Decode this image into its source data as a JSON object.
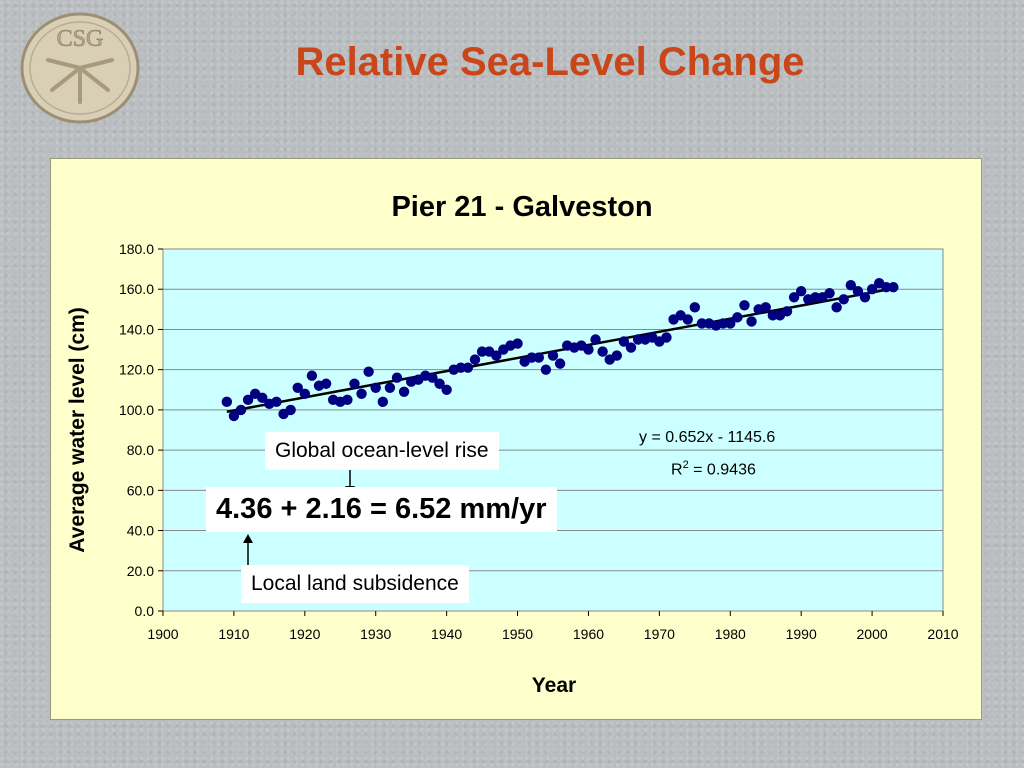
{
  "slide": {
    "title": "Relative Sea-Level Change",
    "logo_text": "CSG",
    "logo_icon": "sand-dollar-icon"
  },
  "chart_data": {
    "type": "scatter",
    "title": "Pier 21 - Galveston",
    "xlabel": "Year",
    "ylabel": "Average water level (cm)",
    "xlim": [
      1900,
      2010
    ],
    "ylim": [
      0,
      180
    ],
    "x_ticks": [
      1900,
      1910,
      1920,
      1930,
      1940,
      1950,
      1960,
      1970,
      1980,
      1990,
      2000,
      2010
    ],
    "y_ticks": [
      "0.0",
      "20.0",
      "40.0",
      "60.0",
      "80.0",
      "100.0",
      "120.0",
      "140.0",
      "160.0",
      "180.0"
    ],
    "grid": "horizontal",
    "colors": {
      "plot_area": "#ccffff",
      "chart_area": "#ffffcc",
      "points": "#000080",
      "trendline": "#000000"
    },
    "series": [
      {
        "x": [
          1909,
          1910,
          1911,
          1912,
          1913,
          1914,
          1915,
          1916,
          1917,
          1918,
          1919,
          1920,
          1921,
          1922,
          1923,
          1924,
          1925,
          1926,
          1927,
          1928,
          1929,
          1930,
          1931,
          1932,
          1933,
          1934,
          1935,
          1936,
          1937,
          1938,
          1939,
          1940,
          1941,
          1942,
          1943,
          1944,
          1945,
          1946,
          1947,
          1948,
          1949,
          1950,
          1951,
          1952,
          1953,
          1954,
          1955,
          1956,
          1957,
          1958,
          1959,
          1960,
          1961,
          1962,
          1963,
          1964,
          1965,
          1966,
          1967,
          1968,
          1969,
          1970,
          1971,
          1972,
          1973,
          1974,
          1975,
          1976,
          1977,
          1978,
          1979,
          1980,
          1981,
          1982,
          1983,
          1984,
          1985,
          1986,
          1987,
          1988,
          1989,
          1990,
          1991,
          1992,
          1993,
          1994,
          1995,
          1996,
          1997,
          1998,
          1999,
          2000,
          2001,
          2002,
          2003
        ],
        "y": [
          104,
          97,
          100,
          105,
          108,
          106,
          103,
          104,
          98,
          100,
          111,
          108,
          117,
          112,
          113,
          105,
          104,
          105,
          113,
          108,
          119,
          111,
          104,
          111,
          116,
          109,
          114,
          115,
          117,
          116,
          113,
          110,
          120,
          121,
          121,
          125,
          129,
          129,
          127,
          130,
          132,
          133,
          124,
          126,
          126,
          120,
          127,
          123,
          132,
          131,
          132,
          130,
          135,
          129,
          125,
          127,
          134,
          131,
          135,
          135,
          136,
          134,
          136,
          145,
          147,
          145,
          151,
          143,
          143,
          142,
          143,
          143,
          146,
          152,
          144,
          150,
          151,
          147,
          147,
          149,
          156,
          159,
          155,
          156,
          156,
          158,
          151,
          155,
          162,
          159,
          156,
          160,
          163,
          161,
          161
        ]
      }
    ],
    "trendline": {
      "slope": 0.652,
      "intercept": -1145.6,
      "x_start": 1909,
      "x_end": 2003
    },
    "equation": "y = 0.652x - 1145.6",
    "r_squared_prefix": "R",
    "r_squared_exp": "2",
    "r_squared_value": " = 0.9436",
    "annotations": {
      "global": "Global ocean-level rise",
      "rate": "4.36 + 2.16 = 6.52 mm/yr",
      "local": "Local land subsidence"
    }
  }
}
